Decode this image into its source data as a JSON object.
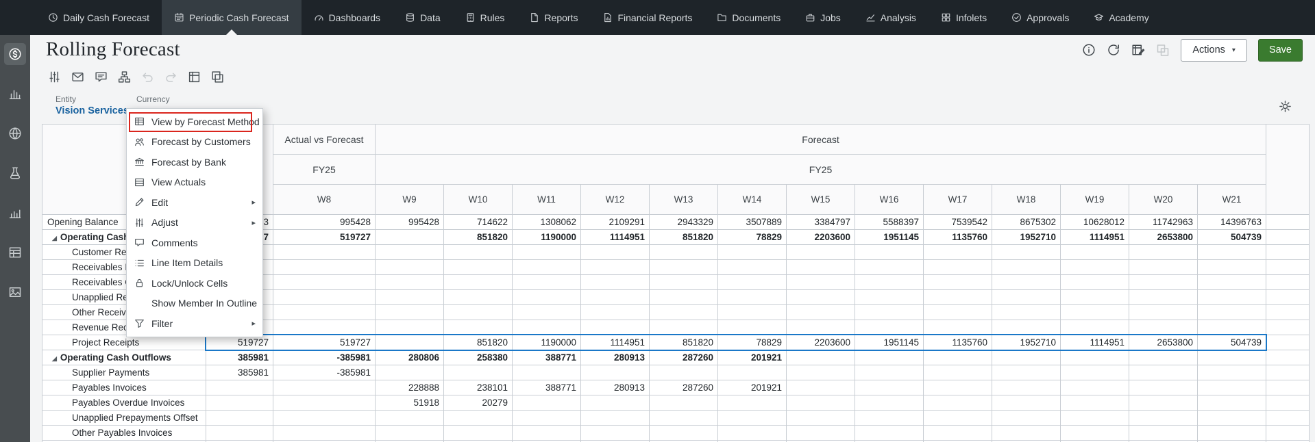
{
  "colors": {
    "nav_bg": "#1e2429",
    "nav_active_bg": "#353d43",
    "sidebar_bg": "#484d50",
    "pov_link_blue": "#19629f",
    "selection_blue": "#1a78c8",
    "save_green": "#3a7b2f",
    "annotation_red": "#da251d",
    "grid_border": "#c8cdd3",
    "header_bg": "#fafafb"
  },
  "top_nav": {
    "active_index": 1,
    "items": [
      {
        "label": "Daily Cash Forecast",
        "icon": "clock"
      },
      {
        "label": "Periodic Cash Forecast",
        "icon": "calendar"
      },
      {
        "label": "Dashboards",
        "icon": "gauge"
      },
      {
        "label": "Data",
        "icon": "database"
      },
      {
        "label": "Rules",
        "icon": "calculator"
      },
      {
        "label": "Reports",
        "icon": "document"
      },
      {
        "label": "Financial Reports",
        "icon": "doc-chart"
      },
      {
        "label": "Documents",
        "icon": "folder"
      },
      {
        "label": "Jobs",
        "icon": "briefcase"
      },
      {
        "label": "Analysis",
        "icon": "line-chart"
      },
      {
        "label": "Infolets",
        "icon": "squares"
      },
      {
        "label": "Approvals",
        "icon": "check-circle"
      },
      {
        "label": "Academy",
        "icon": "academy"
      }
    ]
  },
  "sidebar": {
    "icons": [
      {
        "name": "dollar-circle",
        "active": true
      },
      {
        "name": "bar-chart"
      },
      {
        "name": "globe-grid"
      },
      {
        "name": "flask"
      },
      {
        "name": "combo-chart"
      },
      {
        "name": "spreadsheet"
      },
      {
        "name": "image-chart"
      }
    ]
  },
  "header": {
    "title": "Rolling Forecast",
    "icons": [
      {
        "name": "info"
      },
      {
        "name": "refresh"
      },
      {
        "name": "data-entry"
      },
      {
        "name": "panes",
        "disabled": true
      }
    ],
    "actions_label": "Actions",
    "save_label": "Save"
  },
  "toolbar": {
    "icons": [
      {
        "name": "sliders"
      },
      {
        "name": "envelope"
      },
      {
        "name": "comment-edit"
      },
      {
        "name": "sitemap"
      },
      {
        "name": "undo",
        "disabled": true
      },
      {
        "name": "redo",
        "disabled": true
      },
      {
        "name": "expand-grid"
      },
      {
        "name": "copy-grid"
      }
    ]
  },
  "pov": {
    "entity_label": "Entity",
    "entity_value": "Vision Services",
    "currency_label": "Currency"
  },
  "context_menu": {
    "items": [
      {
        "label": "View by Forecast Method",
        "icon": "grid-select",
        "highlighted": true
      },
      {
        "label": "Forecast by Customers",
        "icon": "people"
      },
      {
        "label": "Forecast by Bank",
        "icon": "bank"
      },
      {
        "label": "View Actuals",
        "icon": "grid-rows"
      },
      {
        "label": "Edit",
        "icon": "pencil",
        "submenu": true
      },
      {
        "label": "Adjust",
        "icon": "sliders",
        "submenu": true
      },
      {
        "label": "Comments",
        "icon": "comment"
      },
      {
        "label": "Line Item Details",
        "icon": "list"
      },
      {
        "label": "Lock/Unlock Cells",
        "icon": "lock"
      },
      {
        "label": "Show Member In Outline",
        "icon": ""
      },
      {
        "label": "Filter",
        "icon": "funnel",
        "submenu": true
      }
    ]
  },
  "grid": {
    "group_headers": {
      "actual_vs_forecast": "Actual vs Forecast",
      "forecast": "Forecast"
    },
    "year_label_actual": "FY25",
    "year_label_forecast": "FY25",
    "week_headers": [
      "W8",
      "W9",
      "W10",
      "W11",
      "W12",
      "W13",
      "W14",
      "W15",
      "W16",
      "W17",
      "W18",
      "W19",
      "W20",
      "W21"
    ],
    "rows": [
      {
        "label": "Opening Balance",
        "level": 0,
        "values": [
          "3",
          "995428",
          "995428",
          "714622",
          "1308062",
          "2109291",
          "2943329",
          "3507889",
          "3384797",
          "5588397",
          "7539542",
          "8675302",
          "10628012",
          "11742963",
          "14396763"
        ]
      },
      {
        "label": "Operating Cash Inflows",
        "level": 1,
        "bold": true,
        "expandable": true,
        "values": [
          "7",
          "519727",
          "",
          "851820",
          "1190000",
          "1114951",
          "851820",
          "78829",
          "2203600",
          "1951145",
          "1135760",
          "1952710",
          "1114951",
          "2653800",
          "504739"
        ]
      },
      {
        "label": "Customer Receipts",
        "level": 2,
        "values": []
      },
      {
        "label": "Receivables Invoices",
        "level": 2,
        "values": []
      },
      {
        "label": "Receivables Overdue Invoices",
        "level": 2,
        "values": []
      },
      {
        "label": "Unapplied Receipts",
        "level": 2,
        "values": []
      },
      {
        "label": "Other Receivables Invoices",
        "level": 2,
        "values": []
      },
      {
        "label": "Revenue Receipts",
        "level": 2,
        "values": []
      },
      {
        "label": "Project Receipts",
        "level": 2,
        "selected": true,
        "values": [
          "519727",
          "519727",
          "",
          "851820",
          "1190000",
          "1114951",
          "851820",
          "78829",
          "2203600",
          "1951145",
          "1135760",
          "1952710",
          "1114951",
          "2653800",
          "504739"
        ]
      },
      {
        "label": "Operating Cash Outflows",
        "level": 1,
        "bold": true,
        "expandable": true,
        "values": [
          "385981",
          "-385981",
          "280806",
          "258380",
          "388771",
          "280913",
          "287260",
          "201921",
          "",
          "",
          "",
          "",
          "",
          "",
          ""
        ]
      },
      {
        "label": "Supplier Payments",
        "level": 2,
        "values": [
          "385981",
          "-385981",
          "",
          "",
          "",
          "",
          "",
          "",
          "",
          "",
          "",
          "",
          "",
          "",
          ""
        ]
      },
      {
        "label": "Payables Invoices",
        "level": 2,
        "values": [
          "",
          "",
          "228888",
          "238101",
          "388771",
          "280913",
          "287260",
          "201921",
          "",
          "",
          "",
          "",
          "",
          "",
          ""
        ]
      },
      {
        "label": "Payables Overdue Invoices",
        "level": 2,
        "values": [
          "",
          "",
          "51918",
          "20279",
          "",
          "",
          "",
          "",
          "",
          "",
          "",
          "",
          "",
          "",
          ""
        ]
      },
      {
        "label": "Unapplied Prepayments Offset",
        "level": 2,
        "values": []
      },
      {
        "label": "Other Payables Invoices",
        "level": 2,
        "values": []
      },
      {
        "label": "",
        "level": 0,
        "values": []
      }
    ]
  }
}
